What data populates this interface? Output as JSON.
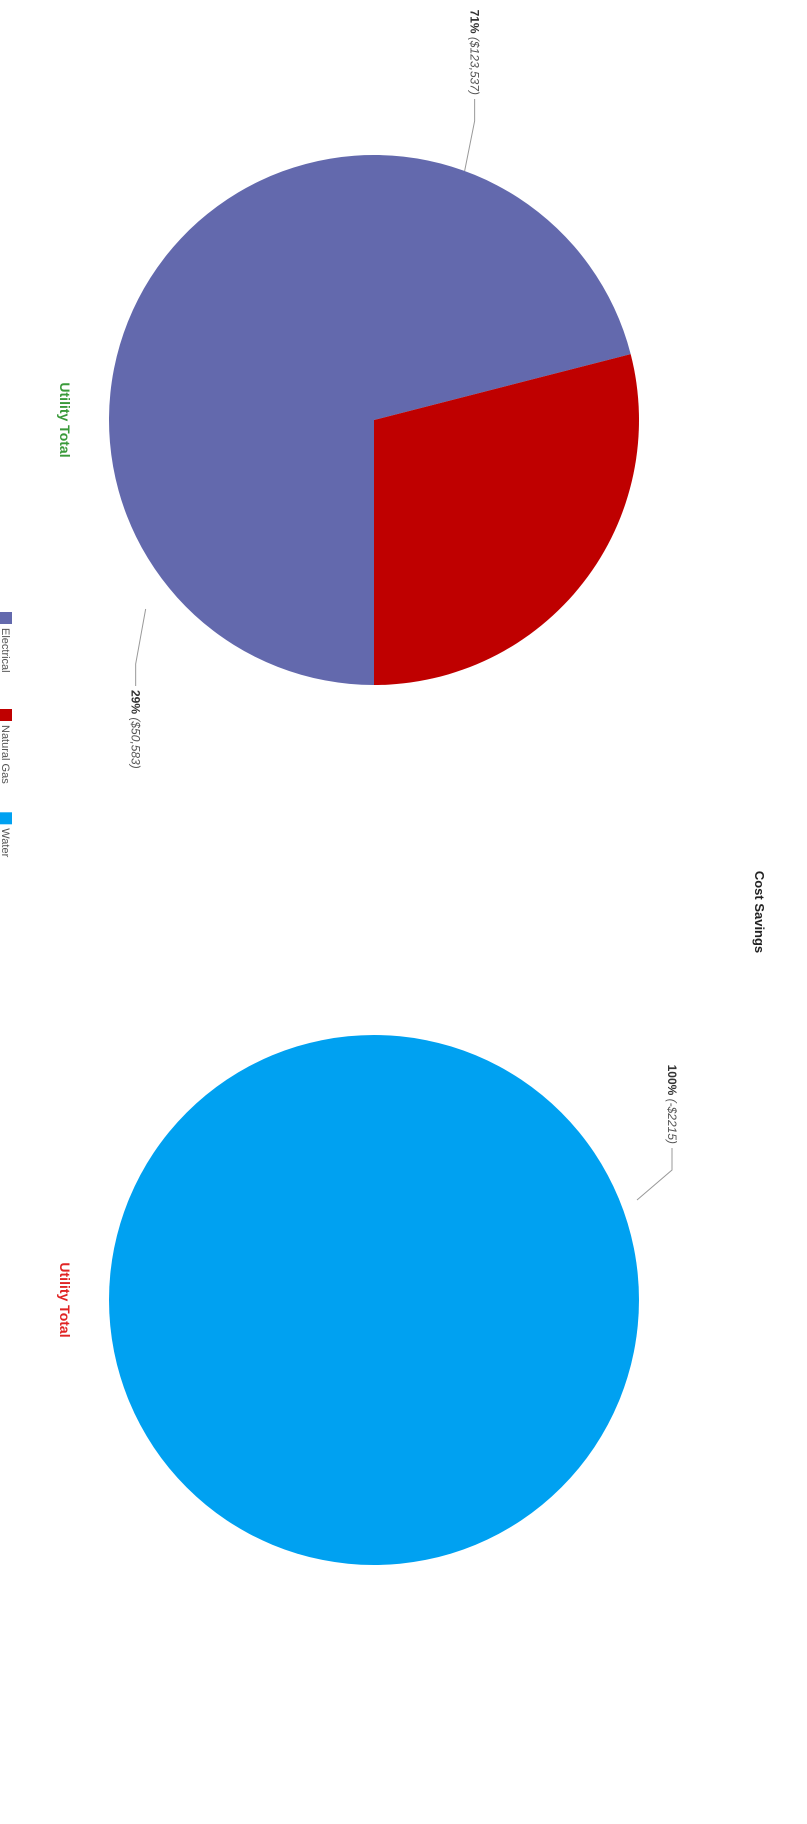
{
  "title": "Cost Savings",
  "colors": {
    "electrical": "#6369ad",
    "natural_gas": "#bf0000",
    "water": "#00a1f1",
    "positive_title": "#3a9a3a",
    "negative_title": "#e02424"
  },
  "legend": [
    {
      "name": "Electrical",
      "color": "#6369ad"
    },
    {
      "name": "Natural Gas",
      "color": "#bf0000"
    },
    {
      "name": "Water",
      "color": "#00a1f1"
    }
  ],
  "chart_data": [
    {
      "type": "pie",
      "title": "Utility Total",
      "slices": [
        {
          "name": "Electrical",
          "percent": 71,
          "value_label": "($123,537)",
          "pct_label": "71%"
        },
        {
          "name": "Natural Gas",
          "percent": 29,
          "value_label": "($50,583)",
          "pct_label": "29%"
        }
      ]
    },
    {
      "type": "pie",
      "title": "Utility Total",
      "slices": [
        {
          "name": "Water",
          "percent": 100,
          "value_label": "(-$2215)",
          "pct_label": "100%"
        }
      ]
    }
  ]
}
